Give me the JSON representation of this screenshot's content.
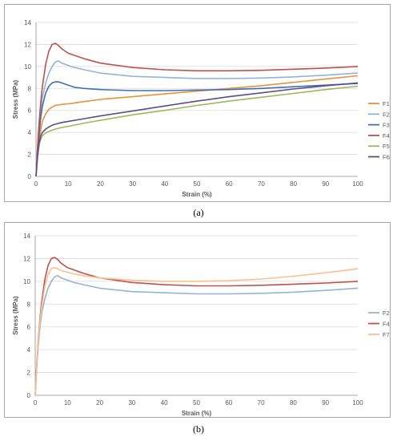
{
  "captions": [
    "(a)",
    "(b)"
  ],
  "chart_data": [
    {
      "type": "line",
      "xlabel": "Strain (%)",
      "ylabel": "Stress (MPa)",
      "xlim": [
        0,
        100
      ],
      "ylim": [
        0,
        14
      ],
      "xticks": [
        0,
        10,
        20,
        30,
        40,
        50,
        60,
        70,
        80,
        90,
        100
      ],
      "yticks": [
        0,
        2,
        4,
        6,
        8,
        10,
        12,
        14
      ],
      "grid": "horizontal",
      "legend": "right",
      "series": [
        {
          "name": "F1",
          "color": "#e8923a",
          "x": [
            0,
            0.5,
            1,
            1.5,
            2,
            3,
            4,
            5,
            6,
            8,
            10,
            15,
            20,
            30,
            40,
            50,
            60,
            70,
            80,
            90,
            100
          ],
          "y": [
            0,
            2.0,
            3.4,
            4.3,
            5.0,
            5.7,
            6.1,
            6.3,
            6.45,
            6.55,
            6.6,
            6.8,
            7.0,
            7.25,
            7.5,
            7.75,
            8.0,
            8.25,
            8.55,
            8.85,
            9.15
          ]
        },
        {
          "name": "F2",
          "color": "#95b3d7",
          "x": [
            0,
            0.5,
            1,
            1.5,
            2,
            3,
            4,
            5,
            6,
            7,
            8,
            10,
            12,
            15,
            20,
            30,
            40,
            50,
            60,
            70,
            80,
            90,
            100
          ],
          "y": [
            0,
            2.5,
            4.5,
            6.0,
            7.2,
            8.5,
            9.4,
            10.0,
            10.4,
            10.5,
            10.3,
            10.1,
            9.9,
            9.7,
            9.4,
            9.1,
            9.0,
            8.9,
            8.9,
            8.95,
            9.05,
            9.2,
            9.4
          ]
        },
        {
          "name": "F3",
          "color": "#3f6fb5",
          "x": [
            0,
            0.5,
            1,
            1.5,
            2,
            3,
            4,
            5,
            6,
            7,
            8,
            10,
            12,
            15,
            20,
            30,
            40,
            50,
            60,
            70,
            80,
            90,
            100
          ],
          "y": [
            0,
            2.2,
            4.0,
            5.4,
            6.4,
            7.6,
            8.2,
            8.5,
            8.6,
            8.6,
            8.5,
            8.3,
            8.1,
            8.0,
            7.9,
            7.8,
            7.8,
            7.85,
            7.9,
            8.0,
            8.15,
            8.3,
            8.45
          ]
        },
        {
          "name": "F4",
          "color": "#c0504d",
          "x": [
            0,
            0.5,
            1,
            1.5,
            2,
            3,
            4,
            5,
            6,
            7,
            8,
            10,
            12,
            15,
            20,
            30,
            40,
            50,
            60,
            70,
            80,
            90,
            100
          ],
          "y": [
            0,
            2.8,
            5.0,
            6.8,
            8.2,
            10.2,
            11.4,
            12.0,
            12.1,
            11.9,
            11.6,
            11.2,
            11.0,
            10.7,
            10.3,
            9.9,
            9.7,
            9.6,
            9.6,
            9.65,
            9.75,
            9.85,
            10.0
          ]
        },
        {
          "name": "F5",
          "color": "#9bbb59",
          "x": [
            0,
            0.5,
            1,
            1.5,
            2,
            3,
            4,
            5,
            6,
            8,
            10,
            15,
            20,
            30,
            40,
            50,
            60,
            70,
            80,
            90,
            100
          ],
          "y": [
            0,
            1.8,
            2.9,
            3.4,
            3.7,
            3.95,
            4.1,
            4.2,
            4.3,
            4.45,
            4.55,
            4.85,
            5.1,
            5.6,
            6.0,
            6.45,
            6.85,
            7.2,
            7.55,
            7.9,
            8.2
          ]
        },
        {
          "name": "F6",
          "color": "#5f4b8b",
          "x": [
            0,
            0.5,
            1,
            1.5,
            2,
            3,
            4,
            5,
            6,
            8,
            10,
            15,
            20,
            30,
            40,
            50,
            60,
            70,
            80,
            90,
            100
          ],
          "y": [
            0,
            1.9,
            3.1,
            3.7,
            4.0,
            4.3,
            4.5,
            4.65,
            4.75,
            4.9,
            5.0,
            5.25,
            5.5,
            5.95,
            6.4,
            6.85,
            7.25,
            7.6,
            7.95,
            8.25,
            8.5
          ]
        }
      ]
    },
    {
      "type": "line",
      "xlabel": "Strain (%)",
      "ylabel": "Stress (MPa)",
      "xlim": [
        0,
        100
      ],
      "ylim": [
        0,
        14
      ],
      "xticks": [
        0,
        10,
        20,
        30,
        40,
        50,
        60,
        70,
        80,
        90,
        100
      ],
      "yticks": [
        0,
        2,
        4,
        6,
        8,
        10,
        12,
        14
      ],
      "grid": "horizontal",
      "legend": "right",
      "series": [
        {
          "name": "F2",
          "color": "#95b3d7",
          "x": [
            0,
            0.5,
            1,
            1.5,
            2,
            3,
            4,
            5,
            6,
            7,
            8,
            10,
            12,
            15,
            20,
            30,
            40,
            50,
            60,
            70,
            80,
            90,
            100
          ],
          "y": [
            0,
            2.5,
            4.5,
            6.0,
            7.2,
            8.5,
            9.4,
            10.0,
            10.4,
            10.5,
            10.3,
            10.1,
            9.9,
            9.7,
            9.4,
            9.1,
            9.0,
            8.9,
            8.9,
            8.95,
            9.05,
            9.2,
            9.4
          ]
        },
        {
          "name": "F4",
          "color": "#c0504d",
          "x": [
            0,
            0.5,
            1,
            1.5,
            2,
            3,
            4,
            5,
            6,
            7,
            8,
            10,
            12,
            15,
            20,
            30,
            40,
            50,
            60,
            70,
            80,
            90,
            100
          ],
          "y": [
            0,
            2.8,
            5.0,
            6.8,
            8.2,
            10.2,
            11.4,
            12.0,
            12.1,
            11.9,
            11.6,
            11.2,
            11.0,
            10.7,
            10.3,
            9.9,
            9.7,
            9.6,
            9.6,
            9.65,
            9.75,
            9.85,
            10.0
          ]
        },
        {
          "name": "F7",
          "color": "#fac090",
          "x": [
            0,
            0.5,
            1,
            1.5,
            2,
            3,
            4,
            5,
            6,
            7,
            8,
            10,
            12,
            15,
            20,
            30,
            40,
            50,
            60,
            70,
            80,
            90,
            100
          ],
          "y": [
            0,
            2.7,
            4.8,
            6.5,
            7.8,
            9.6,
            10.6,
            11.1,
            11.2,
            11.1,
            10.95,
            10.8,
            10.65,
            10.5,
            10.3,
            10.1,
            10.0,
            10.0,
            10.05,
            10.2,
            10.45,
            10.75,
            11.1
          ]
        }
      ]
    }
  ]
}
